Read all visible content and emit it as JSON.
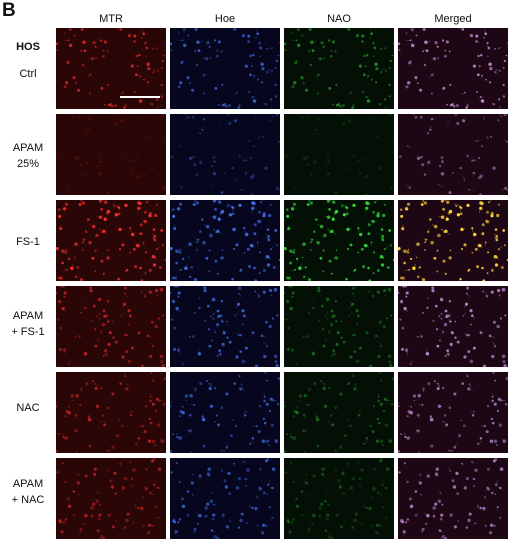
{
  "figure": {
    "panel_letter": "B",
    "cell_line": "HOS",
    "columns": [
      {
        "label": "MTR",
        "channel": "red"
      },
      {
        "label": "Hoe",
        "channel": "blue"
      },
      {
        "label": "NAO",
        "channel": "green"
      },
      {
        "label": "Merged",
        "channel": "merged"
      }
    ],
    "rows": [
      {
        "label_lines": [
          "Ctrl"
        ],
        "density": 0.55,
        "intensity": {
          "red": 0.7,
          "blue": 0.65,
          "green": 0.5,
          "merged": 0.7
        }
      },
      {
        "label_lines": [
          "APAM",
          "25%"
        ],
        "density": 0.3,
        "intensity": {
          "red": 0.15,
          "blue": 0.35,
          "green": 0.12,
          "merged": 0.45
        }
      },
      {
        "label_lines": [
          "FS-1"
        ],
        "density": 0.85,
        "intensity": {
          "red": 0.9,
          "blue": 0.8,
          "green": 0.85,
          "merged": 0.95
        }
      },
      {
        "label_lines": [
          "APAM",
          "+ FS-1"
        ],
        "density": 0.6,
        "intensity": {
          "red": 0.6,
          "blue": 0.7,
          "green": 0.35,
          "merged": 0.7
        }
      },
      {
        "label_lines": [
          "NAC"
        ],
        "density": 0.5,
        "intensity": {
          "red": 0.55,
          "blue": 0.65,
          "green": 0.35,
          "merged": 0.6
        }
      },
      {
        "label_lines": [
          "APAM",
          "+ NAC"
        ],
        "density": 0.55,
        "intensity": {
          "red": 0.5,
          "blue": 0.6,
          "green": 0.25,
          "merged": 0.6
        }
      }
    ],
    "colors": {
      "red_bg": "#2a0606",
      "blue_bg": "#06061e",
      "green_bg": "#041006",
      "merged_bg": "#1e0714",
      "red_cell": "#ff3030",
      "blue_cell": "#4a7dff",
      "green_cell": "#39e33f",
      "merged_cell": "#e8a8ff",
      "merged_cell_fs1": "#ffd23a",
      "scale_bar": "#ffffff"
    }
  }
}
